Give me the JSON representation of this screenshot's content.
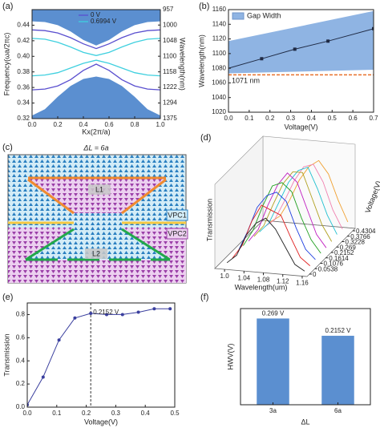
{
  "chart_data": [
    {
      "type": "band",
      "panel": "(a)",
      "xlabel": "Kx(2π/a)",
      "ylabel": "Frequency(ωa/2πc)",
      "y2label": "Wavelength(nm)",
      "x": [
        0,
        0.1,
        0.2,
        0.3,
        0.4,
        0.5,
        0.6,
        0.7,
        0.8,
        0.9,
        1
      ],
      "xlim": [
        0,
        1
      ],
      "xticks": [
        {
          "value": 0,
          "label": "0.0"
        },
        0.2,
        0.4,
        0.6,
        0.8,
        {
          "value": 1,
          "label": "1.0"
        }
      ],
      "ylim": [
        0.32,
        0.46
      ],
      "yticks": [
        0.32,
        0.34,
        0.36,
        0.38,
        {
          "value": 0.4,
          "label": "0.40"
        },
        0.42,
        0.44
      ],
      "y2scale": "reciprocal",
      "y2lim": [
        1375,
        957
      ],
      "y2ticks": [
        957,
        1000,
        1048,
        1100,
        1158,
        1222,
        1294,
        1375
      ],
      "gap_color": "#5b8fd0",
      "upper_edge": [
        0.445,
        0.444,
        0.44,
        0.432,
        0.421,
        0.414,
        0.421,
        0.432,
        0.44,
        0.444,
        0.445
      ],
      "lower_edge": [
        0.324,
        0.332,
        0.348,
        0.362,
        0.371,
        0.374,
        0.371,
        0.362,
        0.348,
        0.332,
        0.324
      ],
      "series": [
        {
          "name": "0 V",
          "color": "#5a4fcf",
          "bands": [
            [
              0.434,
              0.433,
              0.43,
              0.424,
              0.416,
              0.41,
              0.416,
              0.424,
              0.43,
              0.433,
              0.434
            ],
            [
              0.357,
              0.358,
              0.362,
              0.37,
              0.382,
              0.39,
              0.382,
              0.37,
              0.362,
              0.358,
              0.357
            ]
          ]
        },
        {
          "name": "0.6994 V",
          "color": "#3fd0df",
          "bands": [
            [
              0.423,
              0.422,
              0.418,
              0.412,
              0.405,
              0.401,
              0.405,
              0.412,
              0.418,
              0.422,
              0.423
            ],
            [
              0.375,
              0.376,
              0.379,
              0.385,
              0.391,
              0.395,
              0.391,
              0.385,
              0.379,
              0.376,
              0.375
            ]
          ]
        }
      ]
    },
    {
      "type": "gap_line",
      "panel": "(b)",
      "xlabel": "Voltage(V)",
      "ylabel": "Wavelength(nm)",
      "xlim": [
        0,
        0.7
      ],
      "xticks": [
        {
          "value": 0,
          "label": "0.0"
        },
        0.1,
        0.2,
        0.3,
        0.4,
        0.5,
        0.6,
        0.7
      ],
      "ylim": [
        1020,
        1160
      ],
      "yticks": [
        1020,
        1040,
        1060,
        1080,
        1100,
        1120,
        1140,
        1160
      ],
      "gap": {
        "name": "Gap Width",
        "color": "#8fb4e3",
        "x": [
          0,
          0.7
        ],
        "lower": [
          1073,
          1078
        ],
        "upper": [
          1117,
          1158
        ]
      },
      "x": [
        0,
        0.16,
        0.32,
        0.48,
        0.7
      ],
      "values": [
        1080,
        1093,
        1106,
        1117,
        1134
      ],
      "color": "#1f2a44",
      "hline": {
        "value": 1071,
        "label": "1071 nm",
        "color": "#e8702a"
      }
    },
    {
      "type": "waterfall3d",
      "panel": "(d)",
      "xlabel": "Wavelength(um)",
      "zlabel": "Transmission",
      "depth_label": "Voltage(V)",
      "x": [
        1.0,
        1.02,
        1.04,
        1.06,
        1.08,
        1.1,
        1.12,
        1.14,
        1.16
      ],
      "xlim": [
        0.98,
        1.17
      ],
      "xticks": [
        {
          "value": 1,
          "label": "1.0"
        },
        1.04,
        1.08,
        1.12,
        1.16
      ],
      "zlim": [
        0,
        1
      ],
      "depth_ticks": [
        0,
        0.0538,
        0.1076,
        0.1614,
        0.2152,
        0.269,
        0.3228,
        0.3766,
        0.4304
      ],
      "series": [
        {
          "color": "#222222",
          "values": [
            0.05,
            0.15,
            0.4,
            0.55,
            0.62,
            0.5,
            0.3,
            0.1,
            0.03
          ]
        },
        {
          "color": "#e02020",
          "values": [
            0.04,
            0.2,
            0.5,
            0.7,
            0.65,
            0.6,
            0.35,
            0.12,
            0.03
          ]
        },
        {
          "color": "#2040e0",
          "values": [
            0.05,
            0.3,
            0.6,
            0.75,
            0.8,
            0.7,
            0.4,
            0.15,
            0.04
          ]
        },
        {
          "color": "#20a020",
          "values": [
            0.06,
            0.25,
            0.55,
            0.8,
            0.85,
            0.75,
            0.45,
            0.2,
            0.05
          ]
        },
        {
          "color": "#c020c0",
          "values": [
            0.05,
            0.2,
            0.5,
            0.75,
            0.9,
            0.8,
            0.5,
            0.2,
            0.05
          ]
        },
        {
          "color": "#b0a020",
          "values": [
            0.04,
            0.18,
            0.45,
            0.7,
            0.85,
            0.85,
            0.55,
            0.25,
            0.06
          ]
        },
        {
          "color": "#20c0d0",
          "values": [
            0.03,
            0.15,
            0.4,
            0.65,
            0.8,
            0.85,
            0.6,
            0.3,
            0.08
          ]
        },
        {
          "color": "#f080b0",
          "values": [
            0.03,
            0.12,
            0.35,
            0.6,
            0.78,
            0.82,
            0.62,
            0.3,
            0.08
          ]
        },
        {
          "color": "#f0a030",
          "values": [
            0.02,
            0.1,
            0.3,
            0.55,
            0.72,
            0.8,
            0.65,
            0.35,
            0.1
          ]
        }
      ]
    },
    {
      "type": "line",
      "panel": "(e)",
      "xlabel": "Voltage(V)",
      "ylabel": "Transmission",
      "x": [
        0,
        0.0538,
        0.1076,
        0.1614,
        0.2152,
        0.269,
        0.3228,
        0.3766,
        0.4304,
        0.4842
      ],
      "values": [
        0.02,
        0.26,
        0.58,
        0.77,
        0.81,
        0.8,
        0.8,
        0.82,
        0.85,
        0.85
      ],
      "color": "#3a3f9e",
      "xlim": [
        0,
        0.5
      ],
      "xticks": [
        {
          "value": 0,
          "label": "0.0"
        },
        0.1,
        0.2,
        0.3,
        0.4,
        0.5
      ],
      "ylim": [
        0,
        0.9
      ],
      "yticks": [
        {
          "value": 0,
          "label": "0.0"
        },
        0.2,
        0.4,
        0.6,
        0.8
      ],
      "vline": 0.2152,
      "annotation": "0.2152 V"
    },
    {
      "type": "bar",
      "panel": "(f)",
      "xlabel": "ΔL",
      "ylabel": "HWV(V)",
      "categories": [
        "3a",
        "6a"
      ],
      "values": [
        0.269,
        0.2152
      ],
      "value_labels": [
        "0.269 V",
        "0.2152 V"
      ],
      "color": "#5b8fd0",
      "ylim": [
        0,
        0.3
      ]
    }
  ],
  "diagram": {
    "panel": "(c)",
    "title": "ΔL = 6a",
    "labels": {
      "l1": "L1",
      "l2": "L2",
      "vpc1": "VPC1",
      "vpc2": "VPC2"
    }
  }
}
